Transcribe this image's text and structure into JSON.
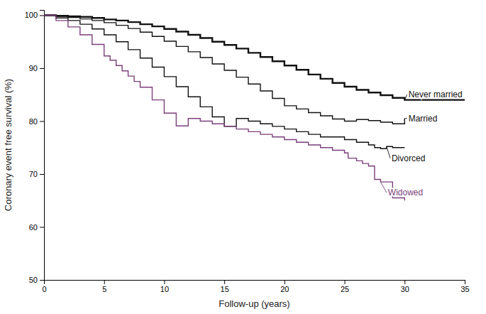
{
  "chart_data": {
    "type": "step",
    "xlabel": "Follow-up (years)",
    "ylabel": "Coronary event free survival (%)",
    "xlim": [
      0,
      35
    ],
    "ylim": [
      50,
      101
    ],
    "xticks": [
      0,
      5,
      10,
      15,
      20,
      25,
      30,
      35
    ],
    "yticks": [
      50,
      60,
      70,
      80,
      90,
      100
    ],
    "series": [
      {
        "color": "#111111",
        "x": [
          0,
          1,
          2,
          3,
          4,
          5,
          6,
          7,
          8,
          9,
          10,
          11,
          12,
          13,
          14,
          15,
          16,
          17,
          18,
          19,
          20,
          21,
          22,
          23,
          24,
          25,
          26,
          27,
          28,
          29,
          30,
          35
        ],
        "values": [
          100,
          99.9,
          99.8,
          99.7,
          99.5,
          99.2,
          99.0,
          98.7,
          98.3,
          97.9,
          97.4,
          96.9,
          96.3,
          95.7,
          95.0,
          94.4,
          93.7,
          92.9,
          92.1,
          91.3,
          90.5,
          89.7,
          88.8,
          88.0,
          87.2,
          86.5,
          85.9,
          85.4,
          84.9,
          84.4,
          84.0,
          84.0
        ]
      },
      {
        "color": "#111111",
        "x": [
          0,
          1,
          2,
          3,
          4,
          5,
          6,
          7,
          8,
          9,
          10,
          11,
          12,
          13,
          14,
          15,
          16,
          17,
          18,
          19,
          20,
          21,
          22,
          23,
          24,
          25,
          26,
          27,
          28,
          29,
          30
        ],
        "values": [
          100,
          99.8,
          99.6,
          99.3,
          99.0,
          98.6,
          98.1,
          97.5,
          96.8,
          96.0,
          95.1,
          94.1,
          93.1,
          92.0,
          90.8,
          89.6,
          88.3,
          87.0,
          85.7,
          84.3,
          82.9,
          82.3,
          81.6,
          81.0,
          80.4,
          80.0,
          80.3,
          80.1,
          79.8,
          79.5,
          80.5
        ]
      },
      {
        "color": "#111111",
        "x": [
          0,
          1,
          2,
          3,
          4,
          5,
          6,
          7,
          8,
          9,
          10,
          11,
          12,
          13,
          14,
          15,
          16,
          17,
          18,
          19,
          20,
          21,
          22,
          23,
          24,
          25,
          26,
          27,
          27.5,
          28,
          28.5,
          29,
          30
        ],
        "values": [
          100,
          99.5,
          99.0,
          98.3,
          97.4,
          96.3,
          95.0,
          93.5,
          91.9,
          90.2,
          88.4,
          86.5,
          84.6,
          82.7,
          80.8,
          79.0,
          80.5,
          80.0,
          79.5,
          79.0,
          78.5,
          78.0,
          77.5,
          77.0,
          77.0,
          76.5,
          76.0,
          75.5,
          75.0,
          74.8,
          75.2,
          75.0,
          75.0
        ]
      },
      {
        "color": "#7b3f7b",
        "x": [
          0,
          1,
          2,
          3,
          4,
          5,
          5.5,
          6,
          6.5,
          7,
          7.5,
          8,
          9,
          10,
          11,
          12,
          13,
          14,
          15,
          16,
          17,
          18,
          19,
          20,
          21,
          22,
          23,
          24,
          25,
          25.3,
          26,
          26.5,
          27,
          27.5,
          28,
          29,
          30
        ],
        "values": [
          100,
          99.0,
          97.8,
          96.3,
          94.5,
          92.3,
          91.5,
          90.5,
          89.5,
          88.5,
          87.5,
          86.4,
          84.0,
          81.5,
          79.1,
          80.5,
          80.0,
          79.5,
          79.0,
          78.5,
          78.0,
          77.5,
          77.0,
          76.5,
          76.0,
          75.5,
          75.0,
          74.5,
          74.0,
          73.0,
          72.5,
          72.0,
          71.5,
          69.0,
          68.5,
          65.5,
          65.0
        ]
      }
    ],
    "annotations": [
      {
        "text": "Never married",
        "x": 30.2,
        "y": 85.0,
        "xy": [
          30.0,
          84.0
        ],
        "color": "#111111"
      },
      {
        "text": "Married",
        "x": 30.2,
        "y": 80.5,
        "xy": [
          30.0,
          80.5
        ],
        "color": "#111111"
      },
      {
        "text": "Divorced",
        "x": 28.8,
        "y": 73.0,
        "xy": [
          28.5,
          75.2
        ],
        "color": "#111111"
      },
      {
        "text": "Widowed",
        "x": 28.5,
        "y": 66.5,
        "xy": [
          28.0,
          68.5
        ],
        "color": "#7b3f7b"
      }
    ]
  }
}
